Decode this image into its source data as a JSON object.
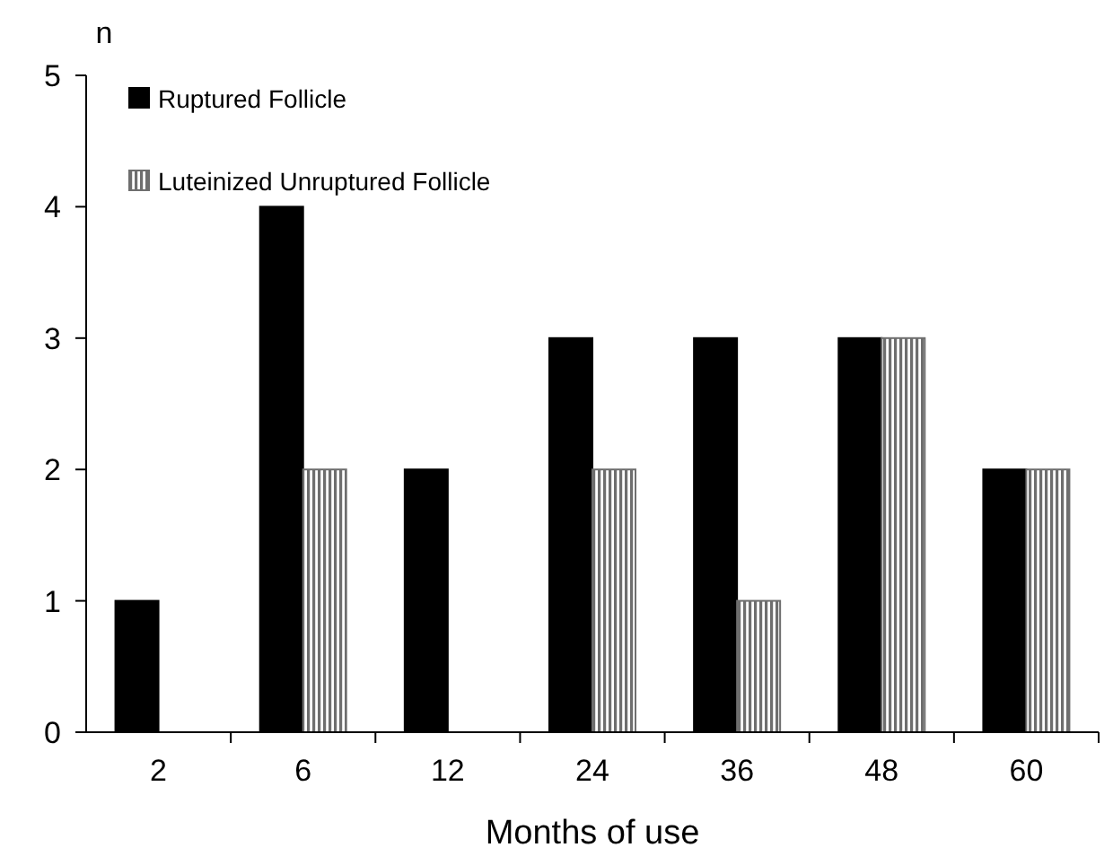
{
  "chart_data": {
    "type": "bar",
    "ylabel": "n",
    "xlabel": "Months of use",
    "categories": [
      "2",
      "6",
      "12",
      "24",
      "36",
      "48",
      "60"
    ],
    "series": [
      {
        "name": "Ruptured Follicle",
        "color": "#000000",
        "values": [
          1,
          4,
          2,
          3,
          3,
          3,
          2
        ]
      },
      {
        "name": "Luteinized Unruptured Follicle",
        "color": "#6e6e6e",
        "values": [
          null,
          2,
          null,
          2,
          1,
          3,
          2
        ]
      }
    ],
    "ylim": [
      0,
      5
    ],
    "yticks": [
      0,
      1,
      2,
      3,
      4,
      5
    ],
    "grid": false,
    "legend": "top left"
  }
}
